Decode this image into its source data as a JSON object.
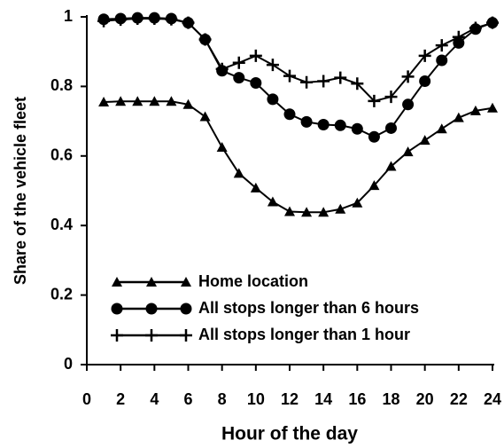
{
  "chart_data": {
    "type": "line",
    "x_label": "Hour of the day",
    "y_label": "Share of the vehicle fleet",
    "x": [
      1,
      2,
      3,
      4,
      5,
      6,
      7,
      8,
      9,
      10,
      11,
      12,
      13,
      14,
      15,
      16,
      17,
      18,
      19,
      20,
      21,
      22,
      23,
      24
    ],
    "series": [
      {
        "name": "Home location",
        "color": "#000000",
        "marker": "triangle",
        "values": [
          0.755,
          0.757,
          0.757,
          0.757,
          0.757,
          0.748,
          0.713,
          0.625,
          0.55,
          0.508,
          0.468,
          0.44,
          0.438,
          0.438,
          0.447,
          0.465,
          0.515,
          0.57,
          0.612,
          0.645,
          0.678,
          0.71,
          0.73,
          0.738
        ]
      },
      {
        "name": "All stops longer than 6 hours",
        "color": "#000000",
        "marker": "circle",
        "values": [
          0.993,
          0.995,
          0.997,
          0.997,
          0.995,
          0.983,
          0.935,
          0.845,
          0.825,
          0.81,
          0.763,
          0.72,
          0.698,
          0.69,
          0.688,
          0.678,
          0.655,
          0.68,
          0.748,
          0.815,
          0.875,
          0.925,
          0.965,
          0.983
        ]
      },
      {
        "name": "All stops longer than 1 hour",
        "color": "#000000",
        "marker": "plus",
        "values": [
          0.988,
          0.992,
          0.995,
          0.995,
          0.993,
          0.983,
          0.935,
          0.85,
          0.868,
          0.888,
          0.862,
          0.83,
          0.812,
          0.815,
          0.825,
          0.808,
          0.758,
          0.77,
          0.828,
          0.888,
          0.918,
          0.942,
          0.968,
          0.983
        ]
      }
    ],
    "xlim": [
      0,
      24
    ],
    "xticks": [
      0,
      2,
      4,
      6,
      8,
      10,
      12,
      14,
      16,
      18,
      20,
      22,
      24
    ],
    "ylim": [
      0,
      1
    ],
    "yticks": [
      0,
      0.2,
      0.4,
      0.6,
      0.8,
      1
    ],
    "legend": "lower-left"
  }
}
